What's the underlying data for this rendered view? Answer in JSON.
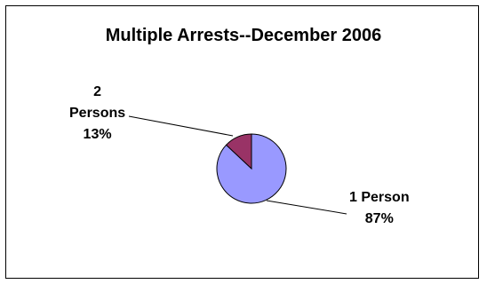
{
  "chart_data": {
    "type": "pie",
    "title": "Multiple Arrests--December 2006",
    "slices": [
      {
        "category": "1 Person",
        "value": 87,
        "percent_label": "87%",
        "color": "#9999ff"
      },
      {
        "category": "2 Persons",
        "value": 13,
        "percent_label": "13%",
        "color": "#993366"
      }
    ],
    "legend": "none",
    "border_color": "#000000"
  }
}
